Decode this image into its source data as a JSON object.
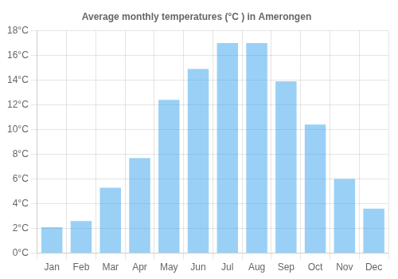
{
  "chart_data": {
    "type": "bar",
    "title": "Average monthly temperatures (°C ) in Amerongen",
    "categories": [
      "Jan",
      "Feb",
      "Mar",
      "Apr",
      "May",
      "Jun",
      "Jul",
      "Aug",
      "Sep",
      "Oct",
      "Nov",
      "Dec"
    ],
    "values": [
      2.1,
      2.6,
      5.3,
      7.7,
      12.4,
      14.9,
      17.0,
      17.0,
      13.9,
      10.4,
      6.0,
      3.6
    ],
    "ylim": [
      0,
      18
    ],
    "yticks": [
      {
        "value": 0,
        "label": "0°C"
      },
      {
        "value": 2,
        "label": "2°C"
      },
      {
        "value": 4,
        "label": "4°C"
      },
      {
        "value": 6,
        "label": "6°C"
      },
      {
        "value": 8,
        "label": "8°C"
      },
      {
        "value": 10,
        "label": "10°C"
      },
      {
        "value": 12,
        "label": "12°C"
      },
      {
        "value": 14,
        "label": "14°C"
      },
      {
        "value": 16,
        "label": "16°C"
      },
      {
        "value": 18,
        "label": "18°C"
      }
    ],
    "grid": true
  }
}
